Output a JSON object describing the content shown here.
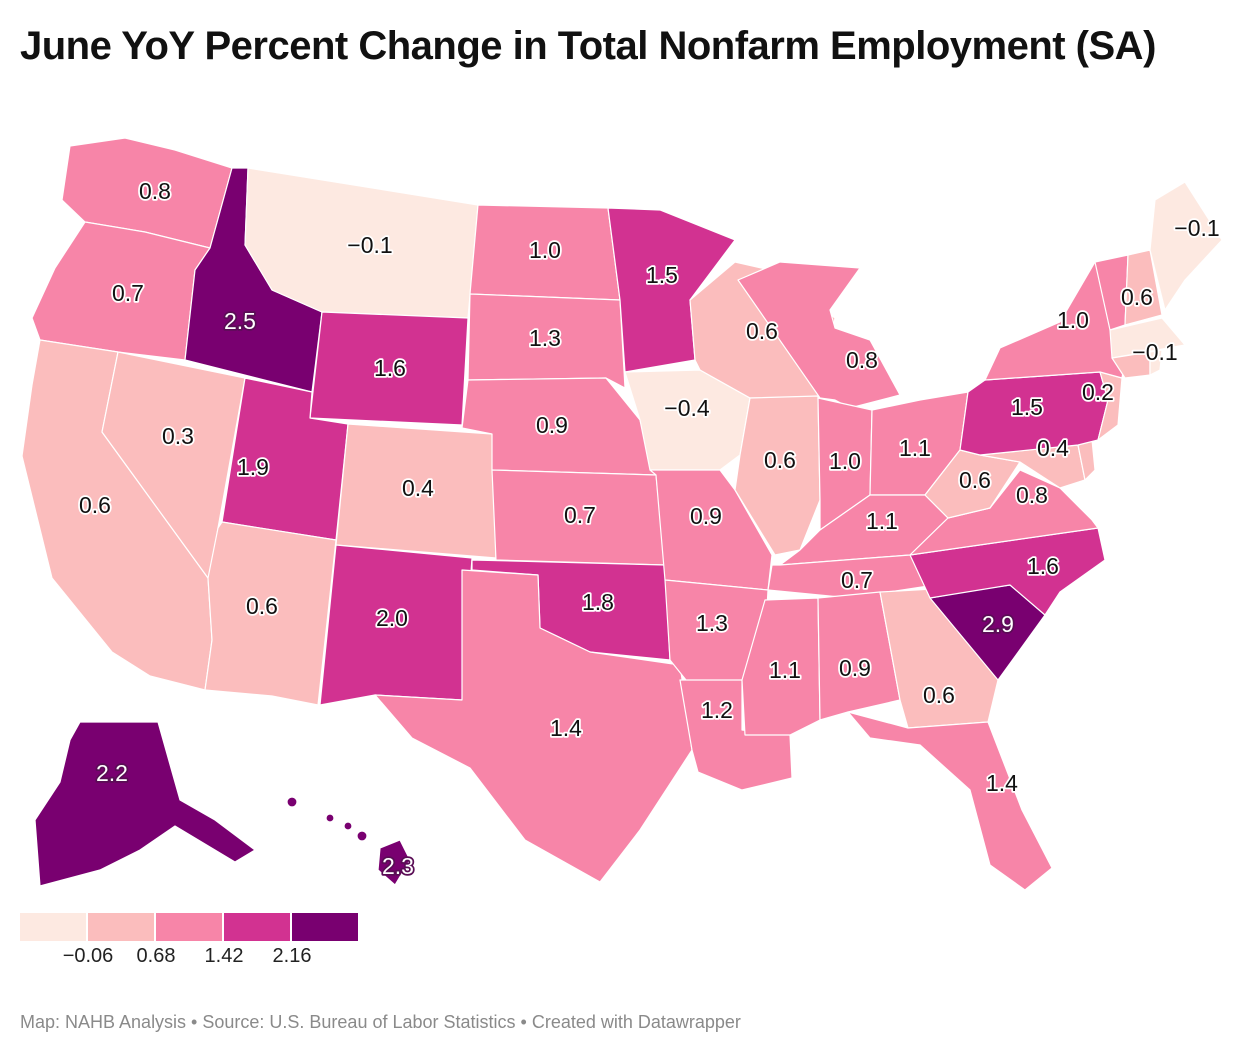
{
  "title": "June YoY Percent Change in Total Nonfarm Employment (SA)",
  "footer": "Map: NAHB Analysis • Source: U.S. Bureau of Labor Statistics • Created with Datawrapper",
  "legend": {
    "colors": [
      "#fde9e1",
      "#fbbdbd",
      "#f785a8",
      "#d23291",
      "#790070"
    ],
    "ticks": [
      "−0.06",
      "0.68",
      "1.42",
      "2.16"
    ]
  },
  "states": [
    {
      "id": "WA",
      "value": "0.8",
      "color": "#f785a8"
    },
    {
      "id": "OR",
      "value": "0.7",
      "color": "#f785a8"
    },
    {
      "id": "CA",
      "value": "0.6",
      "color": "#fbbdbd"
    },
    {
      "id": "ID",
      "value": "2.5",
      "color": "#790070"
    },
    {
      "id": "NV",
      "value": "0.3",
      "color": "#fbbdbd"
    },
    {
      "id": "MT",
      "value": "−0.1",
      "color": "#fde9e1"
    },
    {
      "id": "WY",
      "value": "1.6",
      "color": "#d23291"
    },
    {
      "id": "UT",
      "value": "1.9",
      "color": "#d23291"
    },
    {
      "id": "AZ",
      "value": "0.6",
      "color": "#fbbdbd"
    },
    {
      "id": "CO",
      "value": "0.4",
      "color": "#fbbdbd"
    },
    {
      "id": "NM",
      "value": "2.0",
      "color": "#d23291"
    },
    {
      "id": "ND",
      "value": "1.0",
      "color": "#f785a8"
    },
    {
      "id": "SD",
      "value": "1.3",
      "color": "#f785a8"
    },
    {
      "id": "NE",
      "value": "0.9",
      "color": "#f785a8"
    },
    {
      "id": "KS",
      "value": "0.7",
      "color": "#f785a8"
    },
    {
      "id": "OK",
      "value": "1.8",
      "color": "#d23291"
    },
    {
      "id": "TX",
      "value": "1.4",
      "color": "#f785a8"
    },
    {
      "id": "MN",
      "value": "1.5",
      "color": "#d23291"
    },
    {
      "id": "IA",
      "value": "−0.4",
      "color": "#fde9e1"
    },
    {
      "id": "MO",
      "value": "0.9",
      "color": "#f785a8"
    },
    {
      "id": "AR",
      "value": "1.3",
      "color": "#f785a8"
    },
    {
      "id": "LA",
      "value": "1.2",
      "color": "#f785a8"
    },
    {
      "id": "WI",
      "value": "0.6",
      "color": "#fbbdbd"
    },
    {
      "id": "IL",
      "value": "0.6",
      "color": "#fbbdbd"
    },
    {
      "id": "MI",
      "value": "0.8",
      "color": "#f785a8"
    },
    {
      "id": "IN",
      "value": "1.0",
      "color": "#f785a8"
    },
    {
      "id": "OH",
      "value": "1.1",
      "color": "#f785a8"
    },
    {
      "id": "KY",
      "value": "1.1",
      "color": "#f785a8"
    },
    {
      "id": "TN",
      "value": "0.7",
      "color": "#f785a8"
    },
    {
      "id": "MS",
      "value": "1.1",
      "color": "#f785a8"
    },
    {
      "id": "AL",
      "value": "0.9",
      "color": "#f785a8"
    },
    {
      "id": "GA",
      "value": "0.6",
      "color": "#fbbdbd"
    },
    {
      "id": "FL",
      "value": "1.4",
      "color": "#f785a8"
    },
    {
      "id": "SC",
      "value": "2.9",
      "color": "#790070"
    },
    {
      "id": "NC",
      "value": "1.6",
      "color": "#d23291"
    },
    {
      "id": "VA",
      "value": "0.8",
      "color": "#f785a8"
    },
    {
      "id": "WV",
      "value": "0.6",
      "color": "#fbbdbd"
    },
    {
      "id": "MD",
      "value": "0.4",
      "color": "#fbbdbd"
    },
    {
      "id": "DE",
      "value": "",
      "color": "#fbbdbd"
    },
    {
      "id": "PA",
      "value": "1.5",
      "color": "#d23291"
    },
    {
      "id": "NJ",
      "value": "0.2",
      "color": "#fbbdbd"
    },
    {
      "id": "NY",
      "value": "1.0",
      "color": "#f785a8"
    },
    {
      "id": "VT",
      "value": "",
      "color": "#f785a8"
    },
    {
      "id": "NH",
      "value": "0.6",
      "color": "#fbbdbd"
    },
    {
      "id": "MA",
      "value": "−0.1",
      "color": "#fde9e1"
    },
    {
      "id": "CT",
      "value": "",
      "color": "#fbbdbd"
    },
    {
      "id": "RI",
      "value": "",
      "color": "#fde9e1"
    },
    {
      "id": "ME",
      "value": "−0.1",
      "color": "#fde9e1"
    },
    {
      "id": "AK",
      "value": "2.2",
      "color": "#790070"
    },
    {
      "id": "HI",
      "value": "2.3",
      "color": "#790070"
    }
  ]
}
